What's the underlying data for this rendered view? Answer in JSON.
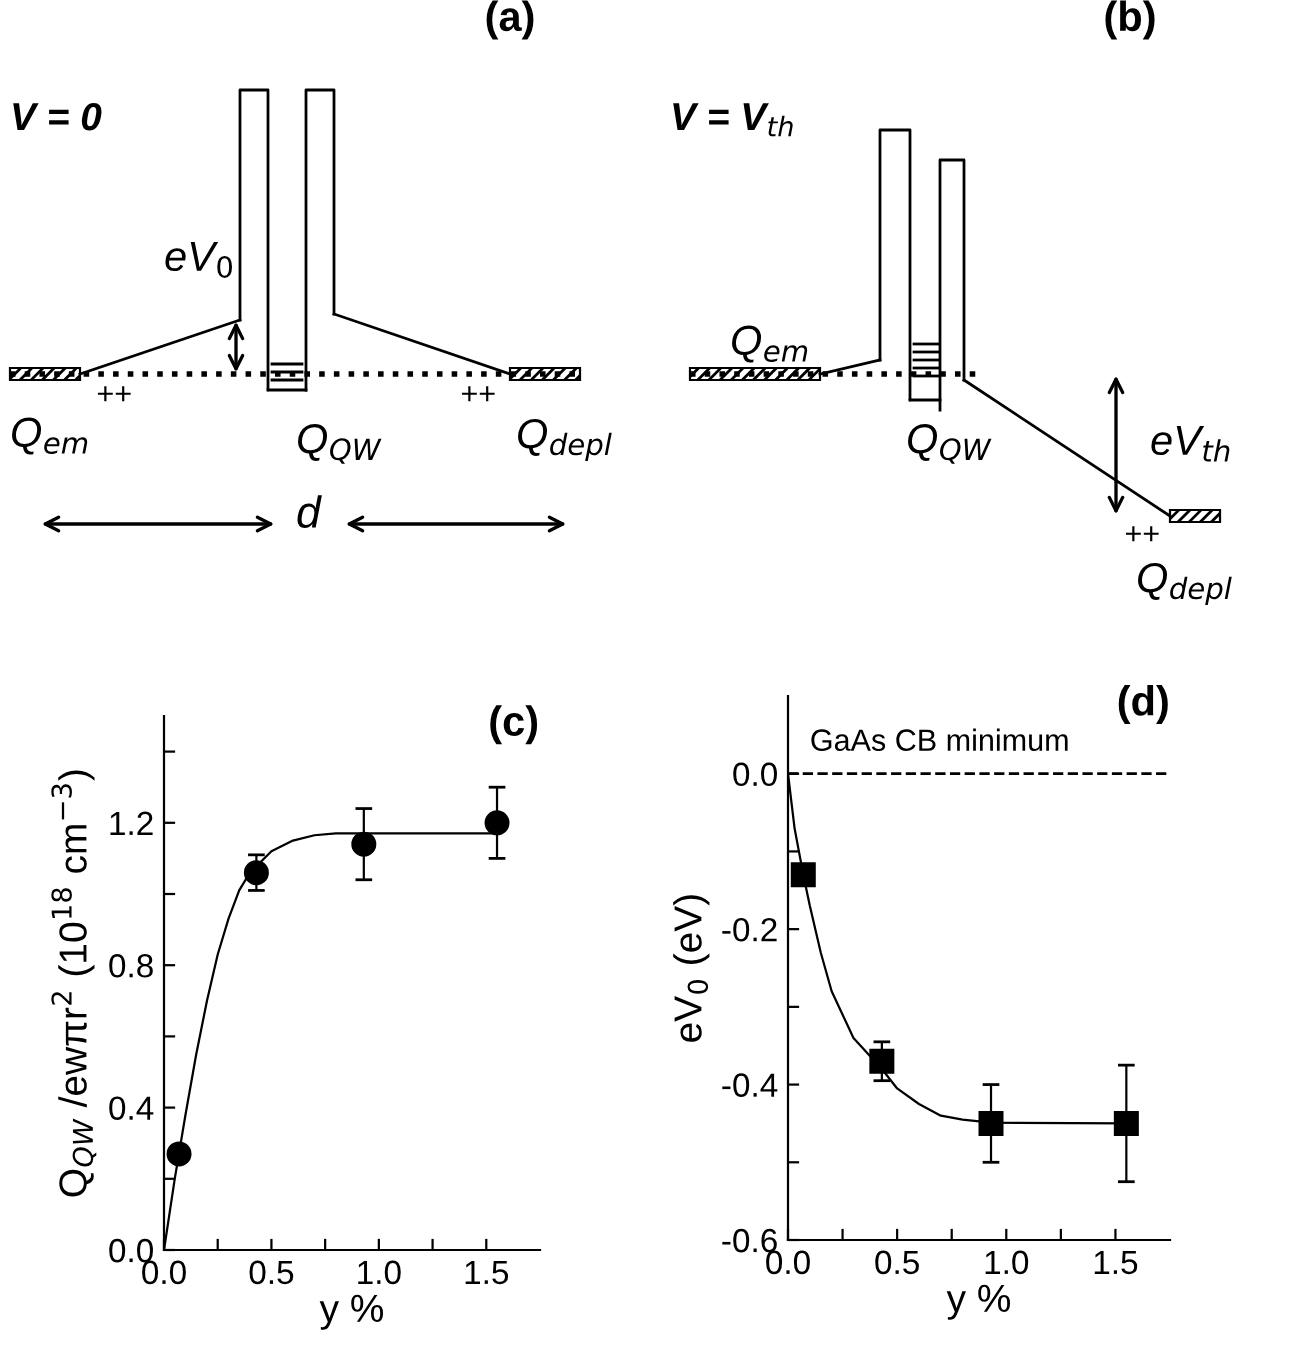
{
  "chart_data": [
    {
      "type": "other",
      "title": "(a)",
      "annotations": [
        "V = 0",
        "eV$_{0}$",
        "Q$_{em}$",
        "++",
        "Q$_{QW}$",
        "++",
        "Q$_{depl}$",
        "d"
      ]
    },
    {
      "type": "other",
      "title": "(b)",
      "annotations": [
        "V = V$_{th}$",
        "Q$_{em}$",
        "Q$_{QW}$",
        "eV$_{th}$",
        "++",
        "Q$_{depl}$"
      ]
    },
    {
      "type": "scatter",
      "title": "(c)",
      "xlabel": "y %",
      "ylabel": "Q$_{QW}$ /ewπr$^{2}$ (10$^{18}$ cm$^{−3}$)",
      "xlim": [
        0.0,
        1.75
      ],
      "ylim": [
        0.0,
        1.5
      ],
      "xticks": [
        {
          "value": 0,
          "label": "0.0"
        },
        {
          "value": 0.25,
          "label": null
        },
        {
          "value": 0.5,
          "label": "0.5"
        },
        {
          "value": 0.75,
          "label": null
        },
        {
          "value": 1,
          "label": "1.0"
        },
        {
          "value": 1.25,
          "label": null
        },
        {
          "value": 1.5,
          "label": "1.5"
        }
      ],
      "yticks": [
        {
          "value": 0,
          "label": "0.0"
        },
        {
          "value": 0.2,
          "label": null
        },
        {
          "value": 0.4,
          "label": "0.4"
        },
        {
          "value": 0.6,
          "label": null
        },
        {
          "value": 0.8,
          "label": "0.8"
        },
        {
          "value": 1.0,
          "label": null
        },
        {
          "value": 1.2,
          "label": "1.2"
        },
        {
          "value": 1.4,
          "label": null
        }
      ],
      "series": [
        {
          "type": "scatter",
          "color": "#000000",
          "marker": "circle",
          "x": [
            0.07,
            0.43,
            0.93,
            1.55
          ],
          "values": [
            0.27,
            1.06,
            1.14,
            1.2
          ],
          "errors": [
            null,
            0.05,
            0.1,
            0.1
          ]
        },
        {
          "type": "line",
          "color": "#000000",
          "marker": "none",
          "x": [
            0.0,
            0.05,
            0.1,
            0.15,
            0.2,
            0.25,
            0.3,
            0.35,
            0.4,
            0.5,
            0.6,
            0.7,
            0.8,
            1.0,
            1.55
          ],
          "values": [
            0.0,
            0.2,
            0.38,
            0.55,
            0.7,
            0.83,
            0.93,
            1.01,
            1.06,
            1.12,
            1.15,
            1.165,
            1.17,
            1.17,
            1.17
          ]
        }
      ]
    },
    {
      "type": "scatter",
      "title": "(d)",
      "xlabel": "y %",
      "ylabel": "eV$_{0}$ (eV)",
      "xlim": [
        0.0,
        1.75
      ],
      "ylim": [
        -0.6,
        0.1
      ],
      "xticks": [
        {
          "value": 0,
          "label": "0.0"
        },
        {
          "value": 0.25,
          "label": null
        },
        {
          "value": 0.5,
          "label": "0.5"
        },
        {
          "value": 0.75,
          "label": null
        },
        {
          "value": 1,
          "label": "1.0"
        },
        {
          "value": 1.25,
          "label": null
        },
        {
          "value": 1.5,
          "label": "1.5"
        }
      ],
      "yticks": [
        {
          "value": -0.6,
          "label": "-0.6"
        },
        {
          "value": -0.5,
          "label": null
        },
        {
          "value": -0.4,
          "label": "-0.4"
        },
        {
          "value": -0.3,
          "label": null
        },
        {
          "value": -0.2,
          "label": "-0.2"
        },
        {
          "value": -0.1,
          "label": null
        },
        {
          "value": 0,
          "label": "0.0"
        }
      ],
      "ref_lines": [
        {
          "axis": "y",
          "value": 0.0,
          "label": "GaAs CB minimum",
          "line_style": "dashed",
          "color": "#000000"
        }
      ],
      "series": [
        {
          "type": "scatter",
          "color": "#000000",
          "marker": "square",
          "x": [
            0.07,
            0.43,
            0.93,
            1.55
          ],
          "values": [
            -0.13,
            -0.37,
            -0.45,
            -0.45
          ],
          "errors": [
            null,
            0.025,
            0.05,
            0.075
          ]
        },
        {
          "type": "line",
          "color": "#000000",
          "marker": "none",
          "x": [
            0.0,
            0.03,
            0.07,
            0.1,
            0.15,
            0.2,
            0.3,
            0.43,
            0.5,
            0.6,
            0.7,
            0.8,
            0.93,
            1.55
          ],
          "values": [
            0.0,
            -0.07,
            -0.13,
            -0.17,
            -0.23,
            -0.28,
            -0.34,
            -0.38,
            -0.405,
            -0.425,
            -0.44,
            -0.445,
            -0.449,
            -0.45
          ]
        }
      ]
    }
  ]
}
